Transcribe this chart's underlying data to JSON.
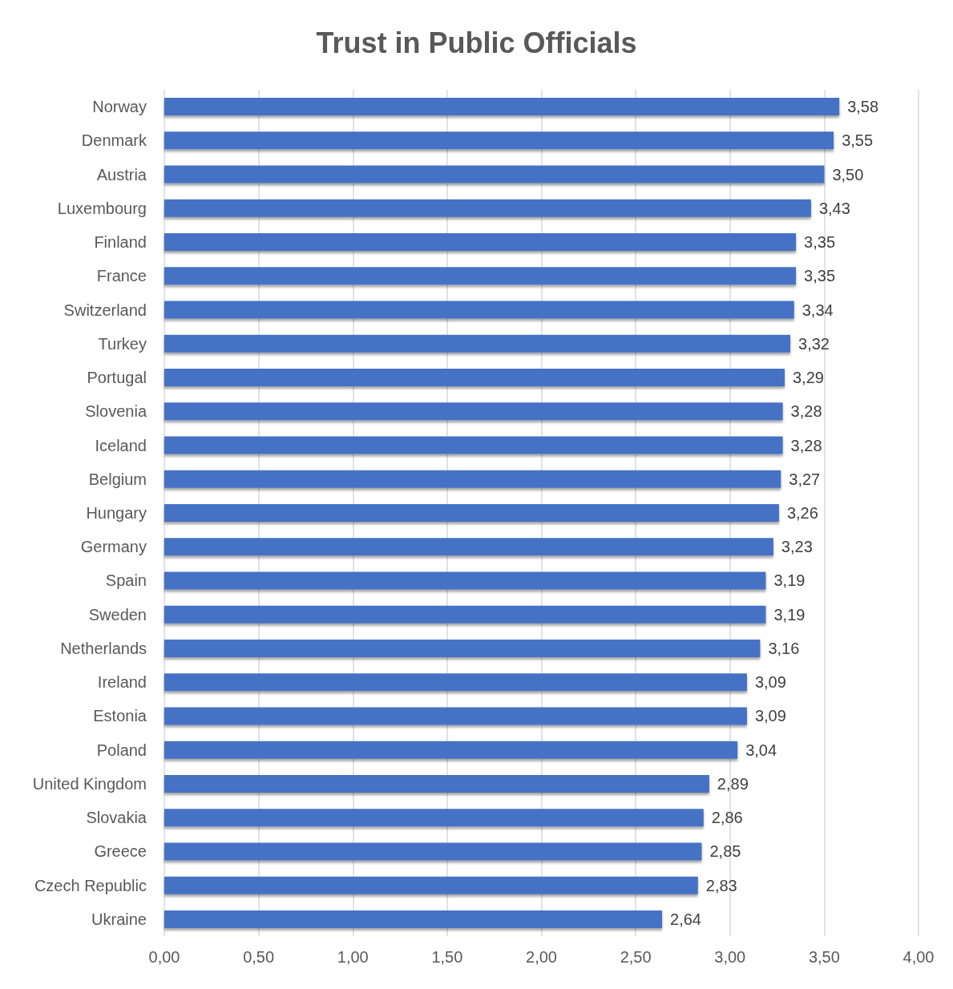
{
  "chart_data": {
    "type": "bar",
    "orientation": "horizontal",
    "title": "Trust in Public Officials",
    "categories": [
      "Norway",
      "Denmark",
      "Austria",
      "Luxembourg",
      "Finland",
      "France",
      "Switzerland",
      "Turkey",
      "Portugal",
      "Slovenia",
      "Iceland",
      "Belgium",
      "Hungary",
      "Germany",
      "Spain",
      "Sweden",
      "Netherlands",
      "Ireland",
      "Estonia",
      "Poland",
      "United Kingdom",
      "Slovakia",
      "Greece",
      "Czech Republic",
      "Ukraine"
    ],
    "values": [
      3.58,
      3.55,
      3.5,
      3.43,
      3.35,
      3.35,
      3.34,
      3.32,
      3.29,
      3.28,
      3.28,
      3.27,
      3.26,
      3.23,
      3.19,
      3.19,
      3.16,
      3.09,
      3.09,
      3.04,
      2.89,
      2.86,
      2.85,
      2.83,
      2.64
    ],
    "value_labels": [
      "3,58",
      "3,55",
      "3,50",
      "3,43",
      "3,35",
      "3,35",
      "3,34",
      "3,32",
      "3,29",
      "3,28",
      "3,28",
      "3,27",
      "3,26",
      "3,23",
      "3,19",
      "3,19",
      "3,16",
      "3,09",
      "3,09",
      "3,04",
      "2,89",
      "2,86",
      "2,85",
      "2,83",
      "2,64"
    ],
    "color": "#4472c4",
    "xlim": [
      0,
      4
    ],
    "xticks": [
      {
        "value": 0,
        "label": "0,00"
      },
      {
        "value": 0.5,
        "label": "0,50"
      },
      {
        "value": 1,
        "label": "1,00"
      },
      {
        "value": 1.5,
        "label": "1,50"
      },
      {
        "value": 2,
        "label": "2,00"
      },
      {
        "value": 2.5,
        "label": "2,50"
      },
      {
        "value": 3,
        "label": "3,00"
      },
      {
        "value": 3.5,
        "label": "3,50"
      },
      {
        "value": 4,
        "label": "4,00"
      }
    ],
    "grid": "x"
  }
}
